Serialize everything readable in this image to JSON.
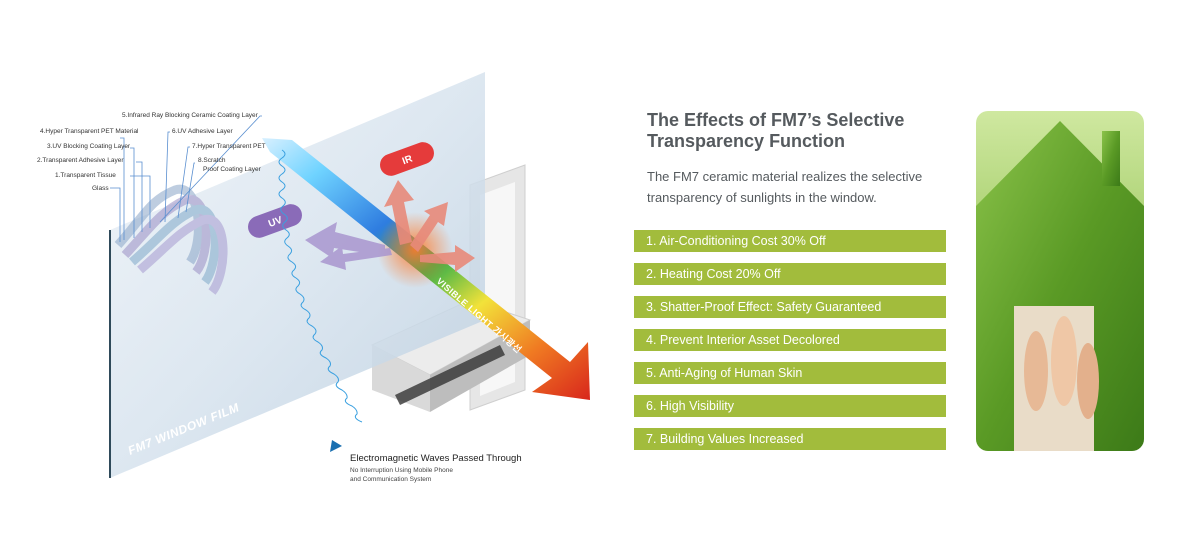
{
  "diagram": {
    "layers": [
      "5.Infrared Ray Blocking Ceramic Coating Layer",
      "4.Hyper Transparent PET Material",
      "6.UV Adhesive Layer",
      "3.UV Blocking Coating Layer",
      "7.Hyper Transparent PET Material",
      "2.Transparent Adhesive Layer",
      "8.Scratch",
      "Proof Coating Layer",
      "1.Transparent Tissue",
      "Glass"
    ],
    "ir_label": "IR",
    "uv_label": "UV",
    "visible_label": "VISIBLE LIGHT 가시광선",
    "film_label": "FM7 WINDOW FILM",
    "em_title": "Electromagnetic Waves Passed Through",
    "em_sub_1": "No Interruption Using Mobile Phone",
    "em_sub_2": "and Communication System",
    "colors": {
      "ir": "#e53b3b",
      "uv": "#8a6bb8",
      "glass": "#b8cde0"
    }
  },
  "info": {
    "title": "The Effects of FM7’s Selective Transparency Function",
    "description": "The FM7 ceramic material realizes the selective transparency of sunlights in the window.",
    "benefits": [
      "1. Air-Conditioning Cost 30% Off",
      "2. Heating Cost 20% Off",
      "3. Shatter-Proof Effect: Safety Guaranteed",
      "4. Prevent Interior Asset Decolored",
      "5. Anti-Aging of Human Skin",
      "6. High Visibility",
      "7. Building Values Increased"
    ],
    "accent_color": "#a2bc3c"
  },
  "photo": {
    "subject": "moss-house-icon"
  }
}
